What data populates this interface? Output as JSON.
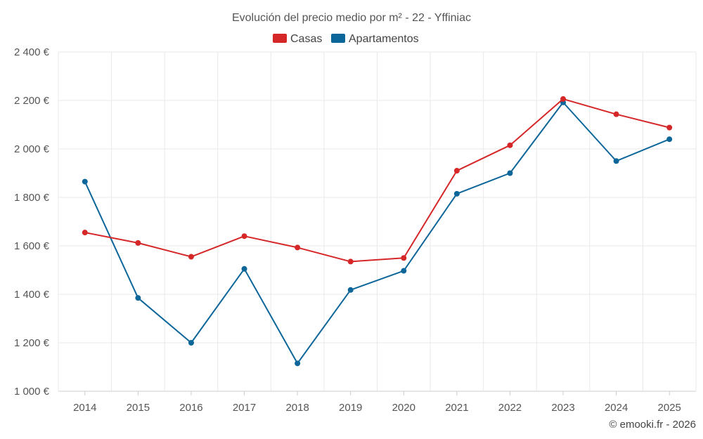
{
  "chart_data": {
    "type": "line",
    "title": "Evolución del precio medio por m² - 22 - Yffiniac",
    "xlabel": "",
    "ylabel": "",
    "categories": [
      "2014",
      "2015",
      "2016",
      "2017",
      "2018",
      "2019",
      "2020",
      "2021",
      "2022",
      "2023",
      "2024",
      "2025"
    ],
    "ylim": [
      1000,
      2400
    ],
    "yticks": [
      1000,
      1200,
      1400,
      1600,
      1800,
      2000,
      2200,
      2400
    ],
    "ytick_labels": [
      "1 000 €",
      "1 200 €",
      "1 400 €",
      "1 600 €",
      "1 800 €",
      "2 000 €",
      "2 200 €",
      "2 400 €"
    ],
    "grid": true,
    "legend_position": "top-center",
    "series": [
      {
        "name": "Casas",
        "color": "#d62728",
        "values": [
          1655,
          1612,
          1555,
          1640,
          1593,
          1535,
          1550,
          1910,
          2015,
          2206,
          2143,
          2088
        ]
      },
      {
        "name": "Apartamentos",
        "color": "#0d6699",
        "values": [
          1865,
          1385,
          1200,
          1505,
          1115,
          1418,
          1497,
          1815,
          1900,
          2192,
          1950,
          2040
        ]
      }
    ]
  },
  "credit": "© emooki.fr - 2026"
}
